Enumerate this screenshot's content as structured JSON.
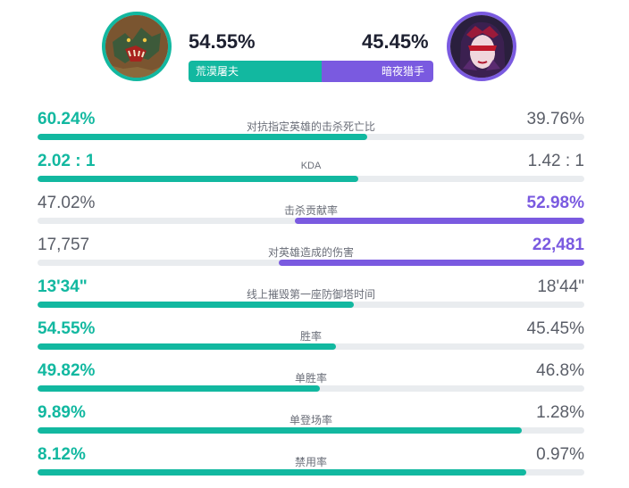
{
  "header": {
    "left": {
      "pct": "54.55%",
      "name": "荒漠屠夫"
    },
    "right": {
      "pct": "45.45%",
      "name": "暗夜猎手"
    }
  },
  "stats": [
    {
      "label": "对抗指定英雄的击杀死亡比",
      "left": "60.24%",
      "right": "39.76%",
      "winner": "left",
      "fill": 0.6024
    },
    {
      "label": "KDA",
      "left": "2.02 : 1",
      "right": "1.42 : 1",
      "winner": "left",
      "fill": 0.587
    },
    {
      "label": "击杀贡献率",
      "left": "47.02%",
      "right": "52.98%",
      "winner": "right",
      "fill": 0.5298
    },
    {
      "label": "对英雄造成的伤害",
      "left": "17,757",
      "right": "22,481",
      "winner": "right",
      "fill": 0.5587
    },
    {
      "label": "线上摧毁第一座防御塔时间",
      "left": "13'34\"",
      "right": "18'44\"",
      "winner": "left",
      "fill": 0.578
    },
    {
      "label": "胜率",
      "left": "54.55%",
      "right": "45.45%",
      "winner": "left",
      "fill": 0.5455
    },
    {
      "label": "单胜率",
      "left": "49.82%",
      "right": "46.8%",
      "winner": "left",
      "fill": 0.5156
    },
    {
      "label": "单登场率",
      "left": "9.89%",
      "right": "1.28%",
      "winner": "left",
      "fill": 0.8854
    },
    {
      "label": "禁用率",
      "left": "8.12%",
      "right": "0.97%",
      "winner": "left",
      "fill": 0.8933
    }
  ],
  "colors": {
    "teal": "#12b8a0",
    "purple": "#7a5ae0",
    "track": "#e9ecef"
  },
  "icons": {
    "left_avatar": "desert-butcher-portrait",
    "right_avatar": "night-hunter-portrait"
  }
}
